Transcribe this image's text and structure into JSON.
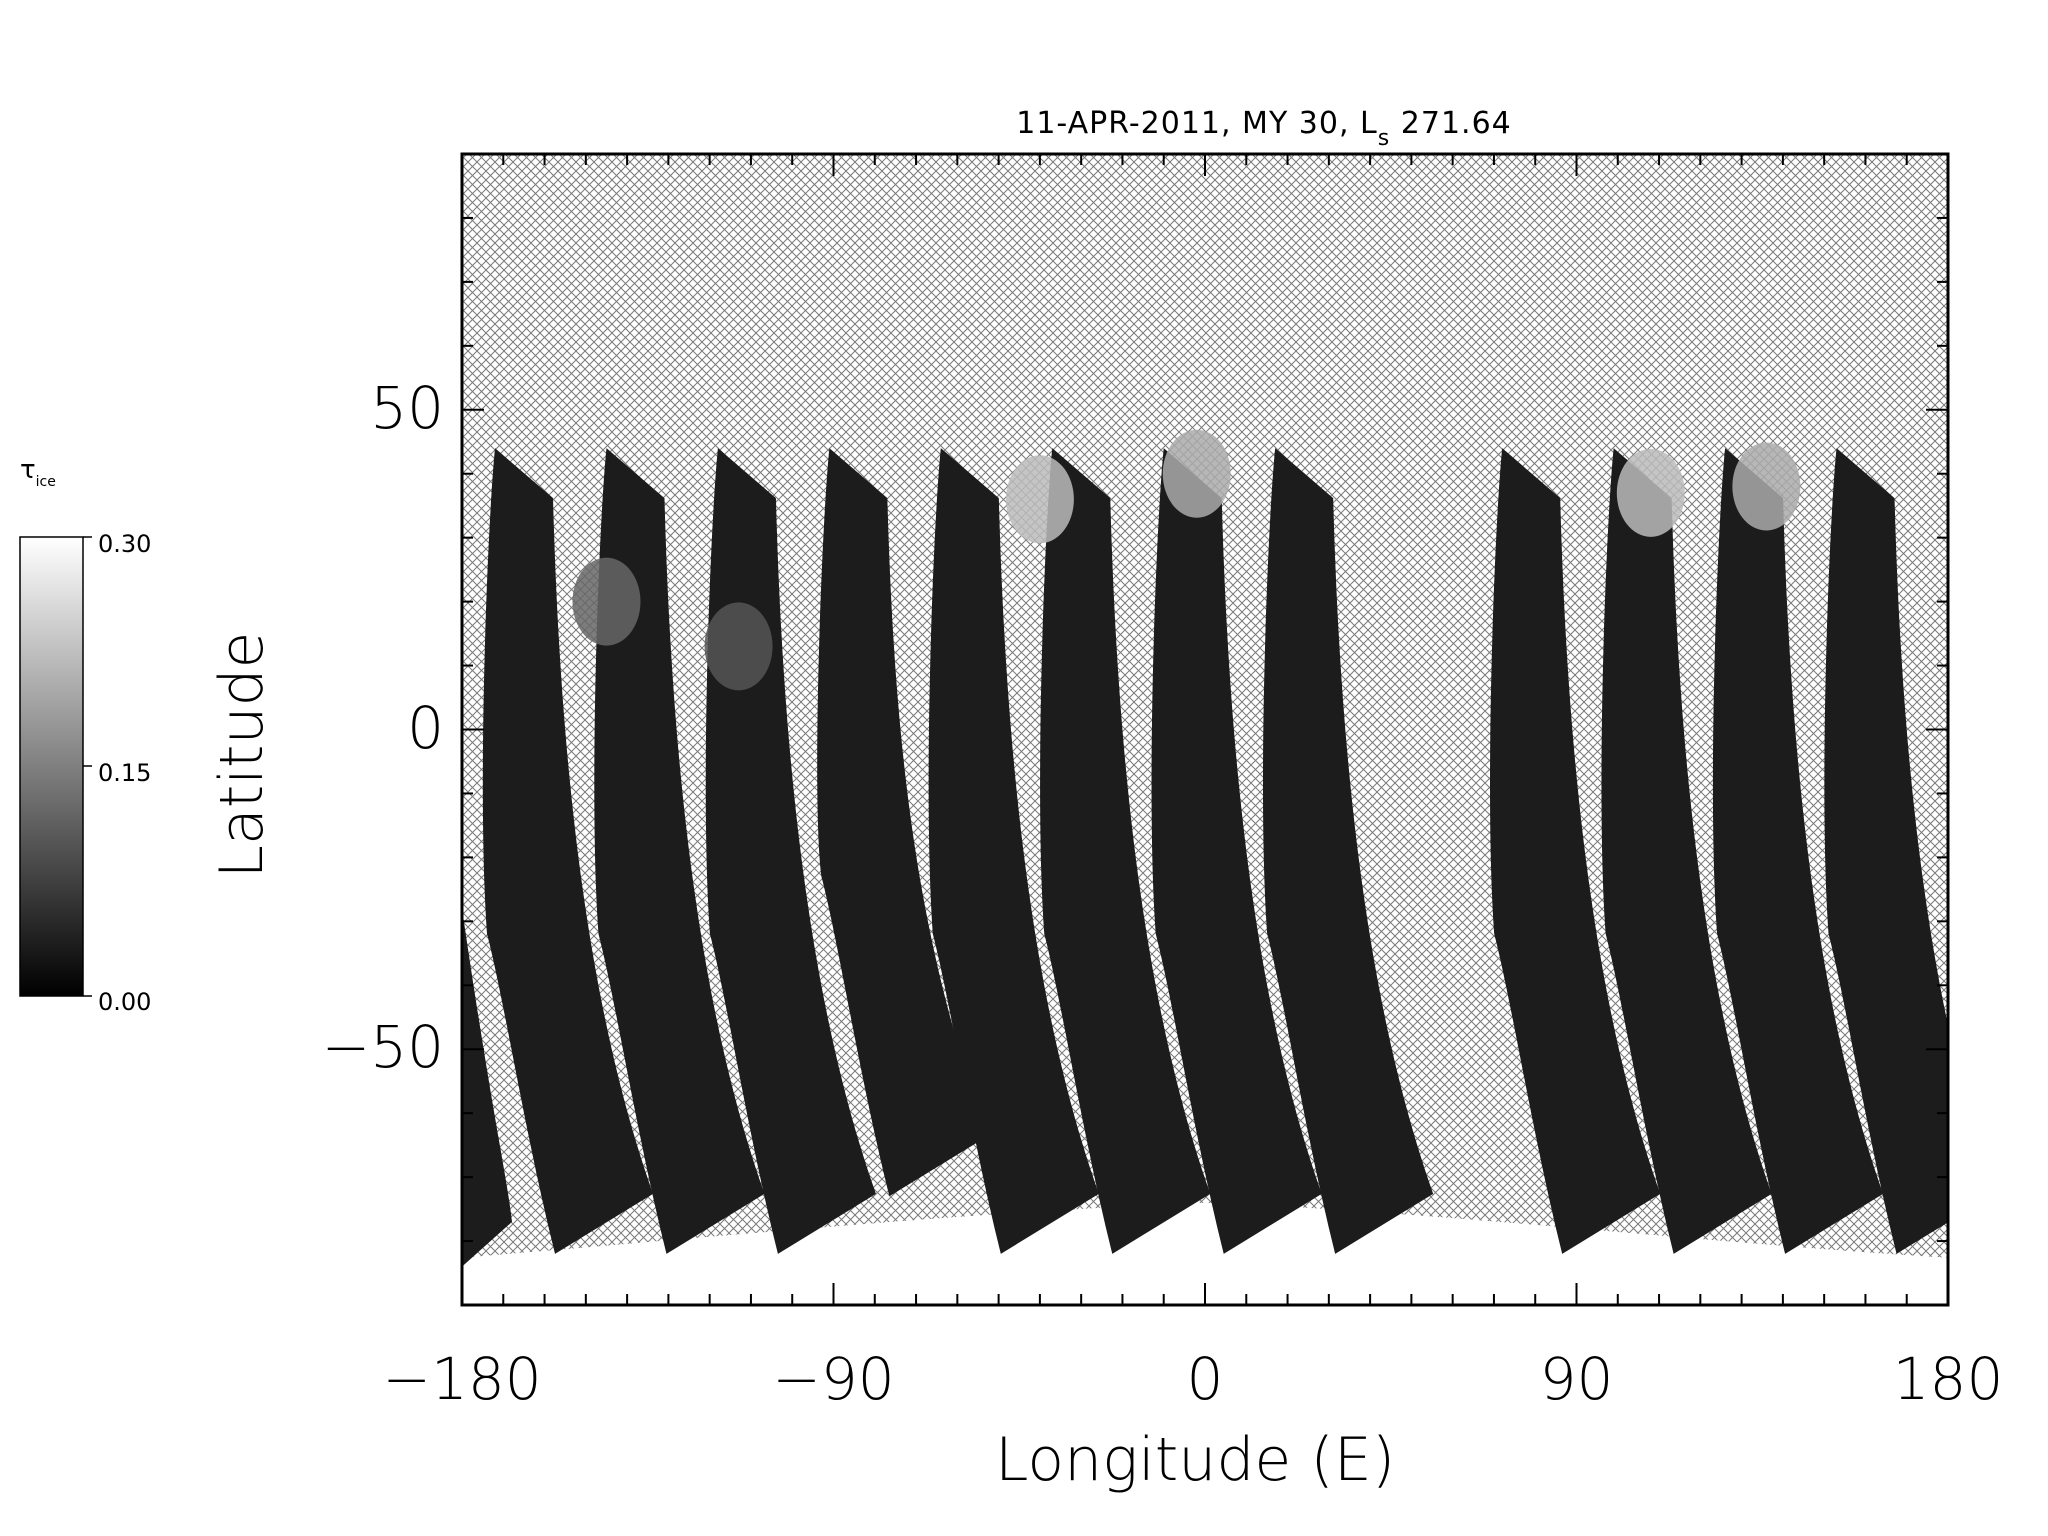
{
  "header": {
    "title_prefix": "11-APR-2011, MY 30,  L",
    "title_subscript": "s",
    "title_suffix": " 271.64"
  },
  "colorbar": {
    "label_symbol": "τ",
    "label_subscript": "ice",
    "tick_labels": [
      "0.30",
      "0.15",
      "0.00"
    ],
    "min": 0.0,
    "max": 0.3,
    "colors": {
      "low": "#000000",
      "high": "#ffffff"
    }
  },
  "chart_data": {
    "type": "heatmap",
    "title": "11-APR-2011, MY 30, Ls 271.64",
    "xlabel": "Longitude (E)",
    "ylabel": "Latitude",
    "xlim": [
      -180,
      180
    ],
    "ylim": [
      -90,
      90
    ],
    "x_tick_labels": [
      "−180",
      "−90",
      "0",
      "90",
      "180"
    ],
    "x_ticks": [
      -180,
      -90,
      0,
      90,
      180
    ],
    "y_tick_labels": [
      "50",
      "0",
      "−50"
    ],
    "y_ticks": [
      50,
      0,
      -50
    ],
    "value_label": "ice optical depth",
    "value_range": [
      0.0,
      0.3
    ],
    "no_data_fill": "crosshatch",
    "swaths": [
      {
        "top_lon": -172,
        "top_lat": 44,
        "bottom_lon": -172,
        "bottom_lat": -82
      },
      {
        "top_lon": -145,
        "top_lat": 44,
        "bottom_lon": -145,
        "bottom_lat": -82
      },
      {
        "top_lon": -118,
        "top_lat": 44,
        "bottom_lon": -118,
        "bottom_lat": -82
      },
      {
        "top_lon": -91,
        "top_lat": 44,
        "bottom_lon": -91,
        "bottom_lat": -73
      },
      {
        "top_lon": -64,
        "top_lat": 44,
        "bottom_lon": -64,
        "bottom_lat": -82
      },
      {
        "top_lon": -37,
        "top_lat": 44,
        "bottom_lon": -37,
        "bottom_lat": -82
      },
      {
        "top_lon": -10,
        "top_lat": 44,
        "bottom_lon": -10,
        "bottom_lat": -82
      },
      {
        "top_lon": 17,
        "top_lat": 44,
        "bottom_lon": 17,
        "bottom_lat": -82
      },
      {
        "top_lon": 72,
        "top_lat": 44,
        "bottom_lon": 72,
        "bottom_lat": -82
      },
      {
        "top_lon": 99,
        "top_lat": 44,
        "bottom_lon": 99,
        "bottom_lat": -82
      },
      {
        "top_lon": 126,
        "top_lat": 44,
        "bottom_lon": 126,
        "bottom_lat": -82
      },
      {
        "top_lon": 153,
        "top_lat": 44,
        "bottom_lon": 153,
        "bottom_lat": -82
      }
    ],
    "bright_patches": [
      {
        "lon": -40,
        "lat": 36,
        "value": 0.22
      },
      {
        "lon": -2,
        "lat": 40,
        "value": 0.2
      },
      {
        "lon": 108,
        "lat": 37,
        "value": 0.22
      },
      {
        "lon": 136,
        "lat": 38,
        "value": 0.2
      },
      {
        "lon": -145,
        "lat": 20,
        "value": 0.12
      },
      {
        "lon": -113,
        "lat": 13,
        "value": 0.1
      }
    ],
    "polar_cap": {
      "lon_min": -180,
      "lon_max": 180,
      "lat_max": -74,
      "value": 0.3
    }
  }
}
